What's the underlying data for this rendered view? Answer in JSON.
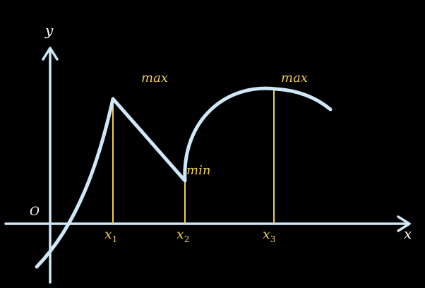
{
  "axes": {
    "x_label": "x",
    "y_label": "y",
    "origin_label": "O"
  },
  "markers": {
    "x1": {
      "base": "x",
      "sub": "1"
    },
    "x2": {
      "base": "x",
      "sub": "2"
    },
    "x3": {
      "base": "x",
      "sub": "3"
    }
  },
  "annotations": {
    "max_1": "max",
    "min_2": "min",
    "max_3": "max"
  },
  "colors": {
    "background": "#000000",
    "curve": "#cfe8f8",
    "axis": "#cfe8f8",
    "guide": "#f0cf55",
    "label_gold": "#f0cf55",
    "label_white": "#ffffff"
  }
}
